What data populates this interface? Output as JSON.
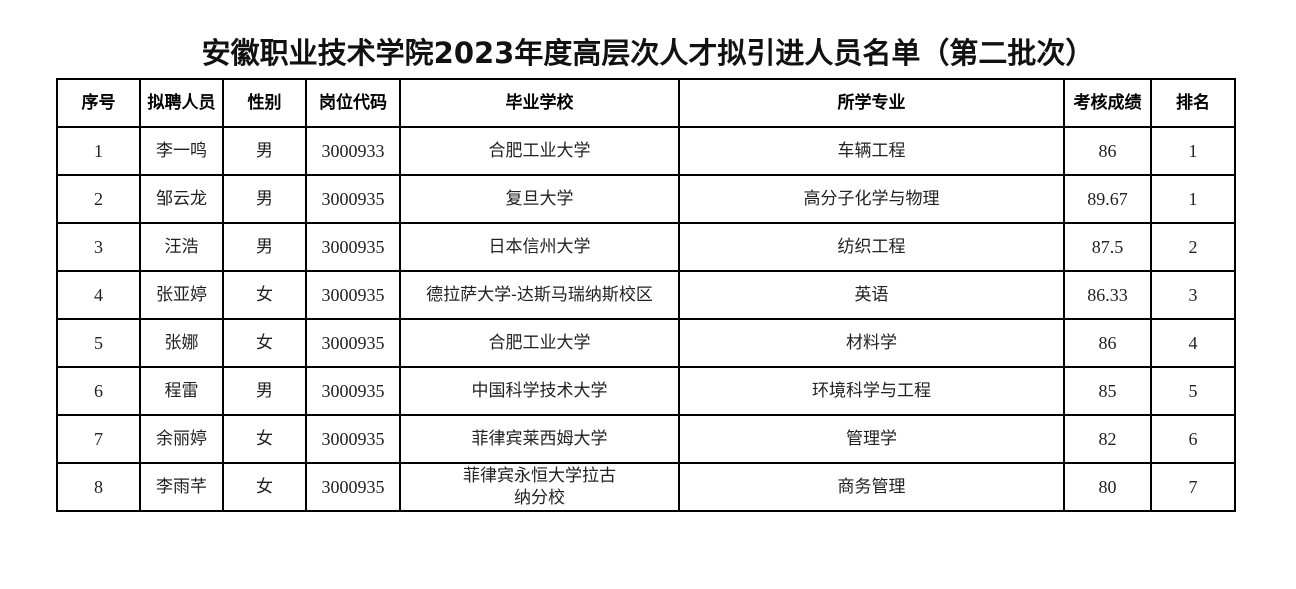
{
  "title": "安徽职业技术学院2023年度高层次人才拟引进人员名单（第二批次）",
  "table": {
    "headers": [
      "序号",
      "拟聘人员",
      "性别",
      "岗位代码",
      "毕业学校",
      "所学专业",
      "考核成绩",
      "排名"
    ],
    "rows": [
      [
        "1",
        "李一鸣",
        "男",
        "3000933",
        "合肥工业大学",
        "车辆工程",
        "86",
        "1"
      ],
      [
        "2",
        "邹云龙",
        "男",
        "3000935",
        "复旦大学",
        "高分子化学与物理",
        "89.67",
        "1"
      ],
      [
        "3",
        "汪浩",
        "男",
        "3000935",
        "日本信州大学",
        "纺织工程",
        "87.5",
        "2"
      ],
      [
        "4",
        "张亚婷",
        "女",
        "3000935",
        "德拉萨大学-达斯马瑞纳斯校区",
        "英语",
        "86.33",
        "3"
      ],
      [
        "5",
        "张娜",
        "女",
        "3000935",
        "合肥工业大学",
        "材料学",
        "86",
        "4"
      ],
      [
        "6",
        "程雷",
        "男",
        "3000935",
        "中国科学技术大学",
        "环境科学与工程",
        "85",
        "5"
      ],
      [
        "7",
        "余丽婷",
        "女",
        "3000935",
        "菲律宾莱西姆大学",
        "管理学",
        "82",
        "6"
      ],
      [
        "8",
        "李雨芊",
        "女",
        "3000935",
        "菲律宾永恒大学拉古纳分校",
        "商务管理",
        "80",
        "7"
      ]
    ]
  }
}
